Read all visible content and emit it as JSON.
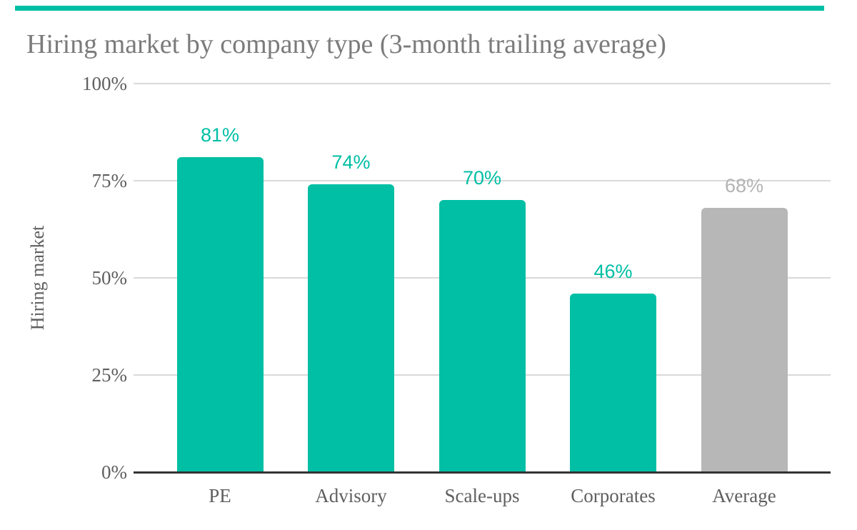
{
  "colors": {
    "accent_teal": "#00BFA5",
    "average_gray": "#B7B7B7",
    "grid": "#D9D9D9",
    "axis": "#333333",
    "title_text": "#7B7B7B",
    "axis_text": "#5F5F5F",
    "average_value_label": "#B3B3B3"
  },
  "chart_data": {
    "type": "bar",
    "title": "Hiring market by company type (3-month trailing average)",
    "ylabel": "Hiring market",
    "xlabel": "",
    "categories": [
      "PE",
      "Advisory",
      "Scale-ups",
      "Corporates",
      "Average"
    ],
    "values": [
      81,
      74,
      70,
      46,
      68
    ],
    "data_labels": [
      "81%",
      "74%",
      "70%",
      "46%",
      "68%"
    ],
    "bar_colors": [
      "#00BFA5",
      "#00BFA5",
      "#00BFA5",
      "#00BFA5",
      "#B7B7B7"
    ],
    "value_label_colors": [
      "#00BFA5",
      "#00BFA5",
      "#00BFA5",
      "#00BFA5",
      "#B3B3B3"
    ],
    "ylim": [
      0,
      100
    ],
    "yticks": [
      "0%",
      "25%",
      "50%",
      "75%",
      "100%"
    ],
    "ytick_values": [
      0,
      25,
      50,
      75,
      100
    ],
    "grid": true,
    "legend": false
  }
}
